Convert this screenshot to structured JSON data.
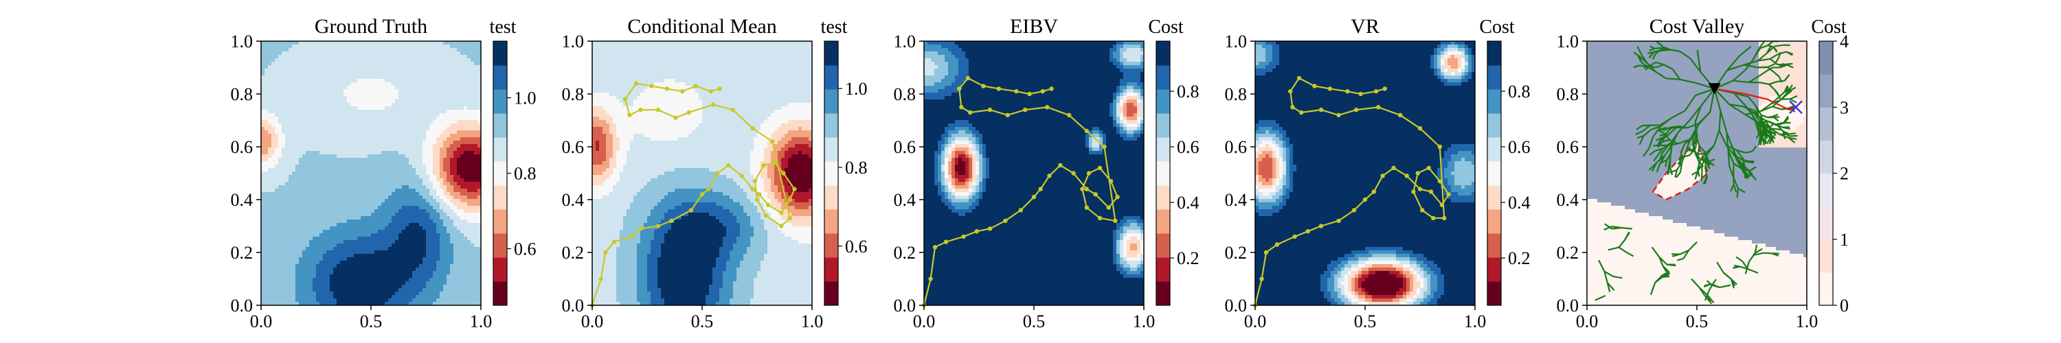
{
  "chart_data": [
    {
      "type": "heatmap",
      "title": "Ground Truth",
      "colorbar_label": "test",
      "colorbar_ticks": [
        "0.6",
        "0.8",
        "1.0"
      ],
      "colorbar_tick_values": [
        0.6,
        0.8,
        1.0
      ],
      "colorbar_range": [
        0.45,
        1.15
      ],
      "colormap": [
        "#67001f",
        "#b2182b",
        "#d6604d",
        "#f4a582",
        "#fddbc7",
        "#f7f7f7",
        "#d1e5f0",
        "#92c5de",
        "#4393c3",
        "#2166ac",
        "#053061"
      ],
      "xlim": [
        0,
        1
      ],
      "ylim": [
        0,
        1
      ],
      "x_ticks": [
        "0.0",
        "0.5",
        "1.0"
      ],
      "y_ticks": [
        "0.0",
        "0.2",
        "0.4",
        "0.6",
        "0.8",
        "1.0"
      ],
      "levels": 11
    },
    {
      "type": "heatmap",
      "title": "Conditional Mean",
      "colorbar_label": "test",
      "colorbar_ticks": [
        "0.6",
        "0.8",
        "1.0"
      ],
      "colorbar_tick_values": [
        0.6,
        0.8,
        1.0
      ],
      "colorbar_range": [
        0.45,
        1.12
      ],
      "colormap": [
        "#67001f",
        "#b2182b",
        "#d6604d",
        "#f4a582",
        "#fddbc7",
        "#f7f7f7",
        "#d1e5f0",
        "#92c5de",
        "#4393c3",
        "#2166ac",
        "#053061"
      ],
      "xlim": [
        0,
        1
      ],
      "ylim": [
        0,
        1
      ],
      "x_ticks": [
        "0.0",
        "0.5",
        "1.0"
      ],
      "y_ticks": [
        "0.0",
        "0.2",
        "0.4",
        "0.6",
        "0.8",
        "1.0"
      ],
      "path_color": "#c8c82a",
      "path": [
        [
          0.0,
          0.0
        ],
        [
          0.04,
          0.1
        ],
        [
          0.06,
          0.2
        ],
        [
          0.1,
          0.24
        ],
        [
          0.18,
          0.26
        ],
        [
          0.22,
          0.29
        ],
        [
          0.3,
          0.3
        ],
        [
          0.36,
          0.32
        ],
        [
          0.45,
          0.36
        ],
        [
          0.5,
          0.42
        ],
        [
          0.53,
          0.44
        ],
        [
          0.57,
          0.5
        ],
        [
          0.62,
          0.53
        ],
        [
          0.68,
          0.49
        ],
        [
          0.73,
          0.44
        ],
        [
          0.76,
          0.42
        ],
        [
          0.8,
          0.38
        ],
        [
          0.86,
          0.35
        ],
        [
          0.9,
          0.4
        ],
        [
          0.92,
          0.44
        ],
        [
          0.87,
          0.5
        ],
        [
          0.83,
          0.54
        ],
        [
          0.78,
          0.53
        ],
        [
          0.74,
          0.47
        ],
        [
          0.75,
          0.4
        ],
        [
          0.79,
          0.34
        ],
        [
          0.86,
          0.3
        ],
        [
          0.9,
          0.33
        ],
        [
          0.82,
          0.62
        ],
        [
          0.73,
          0.67
        ],
        [
          0.64,
          0.74
        ],
        [
          0.55,
          0.76
        ],
        [
          0.44,
          0.73
        ],
        [
          0.38,
          0.71
        ],
        [
          0.3,
          0.74
        ],
        [
          0.22,
          0.74
        ],
        [
          0.17,
          0.72
        ],
        [
          0.15,
          0.78
        ],
        [
          0.2,
          0.84
        ],
        [
          0.27,
          0.83
        ],
        [
          0.34,
          0.82
        ],
        [
          0.41,
          0.81
        ],
        [
          0.47,
          0.83
        ],
        [
          0.54,
          0.81
        ],
        [
          0.58,
          0.82
        ]
      ]
    },
    {
      "type": "heatmap",
      "title": "EIBV",
      "colorbar_label": "Cost",
      "colorbar_ticks": [
        "0.2",
        "0.4",
        "0.6",
        "0.8"
      ],
      "colorbar_tick_values": [
        0.2,
        0.4,
        0.6,
        0.8
      ],
      "colorbar_range": [
        0.03,
        0.98
      ],
      "colormap": [
        "#67001f",
        "#b2182b",
        "#d6604d",
        "#f4a582",
        "#fddbc7",
        "#f7f7f7",
        "#d1e5f0",
        "#92c5de",
        "#4393c3",
        "#2166ac",
        "#053061"
      ],
      "xlim": [
        0,
        1
      ],
      "ylim": [
        0,
        1
      ],
      "x_ticks": [
        "0.0",
        "0.5",
        "1.0"
      ],
      "y_ticks": [
        "0.0",
        "0.2",
        "0.4",
        "0.6",
        "0.8",
        "1.0"
      ],
      "path_color": "#c8c82a",
      "path": [
        [
          0.0,
          0.0
        ],
        [
          0.03,
          0.1
        ],
        [
          0.05,
          0.22
        ],
        [
          0.1,
          0.24
        ],
        [
          0.18,
          0.26
        ],
        [
          0.24,
          0.28
        ],
        [
          0.3,
          0.29
        ],
        [
          0.37,
          0.32
        ],
        [
          0.44,
          0.36
        ],
        [
          0.5,
          0.41
        ],
        [
          0.53,
          0.44
        ],
        [
          0.57,
          0.49
        ],
        [
          0.62,
          0.53
        ],
        [
          0.68,
          0.5
        ],
        [
          0.74,
          0.44
        ],
        [
          0.78,
          0.42
        ],
        [
          0.84,
          0.37
        ],
        [
          0.88,
          0.41
        ],
        [
          0.85,
          0.47
        ],
        [
          0.8,
          0.52
        ],
        [
          0.75,
          0.5
        ],
        [
          0.72,
          0.44
        ],
        [
          0.74,
          0.37
        ],
        [
          0.8,
          0.33
        ],
        [
          0.87,
          0.32
        ],
        [
          0.82,
          0.6
        ],
        [
          0.74,
          0.66
        ],
        [
          0.66,
          0.72
        ],
        [
          0.56,
          0.75
        ],
        [
          0.46,
          0.74
        ],
        [
          0.38,
          0.72
        ],
        [
          0.3,
          0.74
        ],
        [
          0.21,
          0.73
        ],
        [
          0.17,
          0.75
        ],
        [
          0.16,
          0.82
        ],
        [
          0.2,
          0.86
        ],
        [
          0.27,
          0.83
        ],
        [
          0.34,
          0.82
        ],
        [
          0.42,
          0.81
        ],
        [
          0.48,
          0.8
        ],
        [
          0.54,
          0.81
        ],
        [
          0.58,
          0.82
        ]
      ]
    },
    {
      "type": "heatmap",
      "title": "VR",
      "colorbar_label": "Cost",
      "colorbar_ticks": [
        "0.2",
        "0.4",
        "0.6",
        "0.8"
      ],
      "colorbar_tick_values": [
        0.2,
        0.4,
        0.6,
        0.8
      ],
      "colorbar_range": [
        0.03,
        0.98
      ],
      "colormap": [
        "#67001f",
        "#b2182b",
        "#d6604d",
        "#f4a582",
        "#fddbc7",
        "#f7f7f7",
        "#d1e5f0",
        "#92c5de",
        "#4393c3",
        "#2166ac",
        "#053061"
      ],
      "xlim": [
        0,
        1
      ],
      "ylim": [
        0,
        1
      ],
      "x_ticks": [
        "0.0",
        "0.5",
        "1.0"
      ],
      "y_ticks": [
        "0.0",
        "0.2",
        "0.4",
        "0.6",
        "0.8",
        "1.0"
      ],
      "path_color": "#c8c82a",
      "path": [
        [
          0.0,
          0.0
        ],
        [
          0.03,
          0.1
        ],
        [
          0.05,
          0.2
        ],
        [
          0.1,
          0.23
        ],
        [
          0.18,
          0.26
        ],
        [
          0.24,
          0.28
        ],
        [
          0.3,
          0.3
        ],
        [
          0.38,
          0.32
        ],
        [
          0.45,
          0.36
        ],
        [
          0.5,
          0.4
        ],
        [
          0.54,
          0.43
        ],
        [
          0.58,
          0.49
        ],
        [
          0.63,
          0.52
        ],
        [
          0.69,
          0.49
        ],
        [
          0.75,
          0.44
        ],
        [
          0.8,
          0.43
        ],
        [
          0.85,
          0.38
        ],
        [
          0.88,
          0.42
        ],
        [
          0.84,
          0.47
        ],
        [
          0.79,
          0.52
        ],
        [
          0.74,
          0.5
        ],
        [
          0.72,
          0.43
        ],
        [
          0.76,
          0.36
        ],
        [
          0.81,
          0.33
        ],
        [
          0.86,
          0.33
        ],
        [
          0.84,
          0.6
        ],
        [
          0.75,
          0.67
        ],
        [
          0.66,
          0.72
        ],
        [
          0.56,
          0.75
        ],
        [
          0.46,
          0.74
        ],
        [
          0.38,
          0.72
        ],
        [
          0.3,
          0.74
        ],
        [
          0.21,
          0.73
        ],
        [
          0.17,
          0.75
        ],
        [
          0.16,
          0.81
        ],
        [
          0.2,
          0.86
        ],
        [
          0.27,
          0.83
        ],
        [
          0.34,
          0.82
        ],
        [
          0.42,
          0.81
        ],
        [
          0.48,
          0.8
        ],
        [
          0.55,
          0.81
        ],
        [
          0.59,
          0.82
        ]
      ]
    },
    {
      "type": "heatmap",
      "title": "Cost Valley",
      "colorbar_label": "Cost",
      "colorbar_ticks": [
        "0",
        "1",
        "2",
        "3",
        "4"
      ],
      "colorbar_tick_values": [
        0,
        1,
        2,
        3,
        4
      ],
      "colorbar_range": [
        0,
        4
      ],
      "colormap": [
        "#fff5f0",
        "#fde0d6",
        "#f6e6e8",
        "#e8e8f0",
        "#cfd5e3",
        "#b5bfd3",
        "#95a3c0",
        "#7f8fb1"
      ],
      "xlim": [
        0,
        1
      ],
      "ylim": [
        0,
        1
      ],
      "x_ticks": [
        "0.0",
        "0.5",
        "1.0"
      ],
      "y_ticks": [
        "0.0",
        "0.2",
        "0.4",
        "0.6",
        "0.8",
        "1.0"
      ],
      "tree_color": "#1a7a1a",
      "current_position": [
        0.58,
        0.82
      ],
      "target_position": [
        0.95,
        0.75
      ],
      "selected_path": [
        [
          0.58,
          0.82
        ],
        [
          0.72,
          0.8
        ],
        [
          0.82,
          0.78
        ],
        [
          0.92,
          0.74
        ],
        [
          0.95,
          0.75
        ]
      ],
      "obstacle_polygon": [
        [
          0.3,
          0.43
        ],
        [
          0.36,
          0.5
        ],
        [
          0.45,
          0.58
        ],
        [
          0.5,
          0.62
        ],
        [
          0.55,
          0.5
        ],
        [
          0.46,
          0.44
        ],
        [
          0.36,
          0.4
        ]
      ]
    }
  ]
}
